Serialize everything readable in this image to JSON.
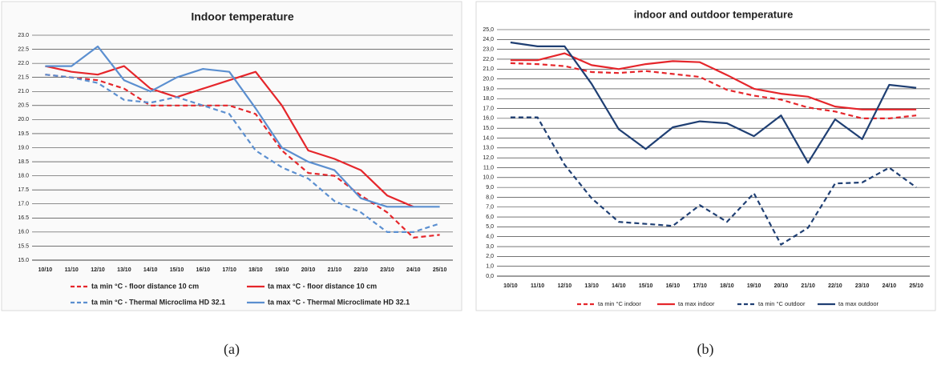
{
  "chart_data": [
    {
      "type": "line",
      "title": "Indoor temperature",
      "caption": "(a)",
      "categories": [
        "10/10",
        "11/10",
        "12/10",
        "13/10",
        "14/10",
        "15/10",
        "16/10",
        "17/10",
        "18/10",
        "19/10",
        "20/10",
        "21/10",
        "22/10",
        "23/10",
        "24/10",
        "25/10"
      ],
      "ylim": [
        15,
        23
      ],
      "yticks": [
        {
          "value": 15,
          "label": "15.0"
        },
        {
          "value": 15.5,
          "label": "15.5"
        },
        {
          "value": 16,
          "label": "16.0"
        },
        {
          "value": 16.5,
          "label": "16.5"
        },
        {
          "value": 17,
          "label": "17.0"
        },
        {
          "value": 17.5,
          "label": "17.5"
        },
        {
          "value": 18,
          "label": "18.0"
        },
        {
          "value": 18.5,
          "label": "18.5"
        },
        {
          "value": 19,
          "label": "19.0"
        },
        {
          "value": 19.5,
          "label": "19.5"
        },
        {
          "value": 20,
          "label": "20.0"
        },
        {
          "value": 20.5,
          "label": "20.5"
        },
        {
          "value": 21,
          "label": "21.0"
        },
        {
          "value": 21.5,
          "label": "21.5"
        },
        {
          "value": 22,
          "label": "22.0"
        },
        {
          "value": 22.5,
          "label": "22.5"
        },
        {
          "value": 23,
          "label": "23.0"
        }
      ],
      "grid": true,
      "legend": "bottom",
      "series": [
        {
          "name": "ta min °C -  floor distance 10 cm",
          "color": "#e5262b",
          "dashed": true,
          "values": [
            21.6,
            21.5,
            21.4,
            21.1,
            20.5,
            20.5,
            20.5,
            20.5,
            20.2,
            18.9,
            18.1,
            18.0,
            17.3,
            16.7,
            15.8,
            15.9
          ]
        },
        {
          "name": "ta max °C - floor distance 10 cm",
          "color": "#e5262b",
          "dashed": false,
          "values": [
            21.9,
            21.7,
            21.6,
            21.9,
            21.1,
            20.8,
            21.1,
            21.4,
            21.7,
            20.5,
            18.9,
            18.6,
            18.2,
            17.3,
            16.9,
            null
          ]
        },
        {
          "name": "ta min °C - Thermal  Microclima HD 32.1",
          "color": "#5b8fd0",
          "dashed": true,
          "values": [
            21.6,
            21.5,
            21.3,
            20.7,
            20.6,
            20.8,
            20.5,
            20.2,
            18.9,
            18.3,
            17.9,
            17.1,
            16.7,
            16.0,
            16.0,
            16.3
          ]
        },
        {
          "name": "ta max °C - Thermal Microclimate  HD 32.1",
          "color": "#5b8fd0",
          "dashed": false,
          "values": [
            21.9,
            21.9,
            22.6,
            21.4,
            21.0,
            21.5,
            21.8,
            21.7,
            20.4,
            19.0,
            18.5,
            18.2,
            17.2,
            16.9,
            16.9,
            16.9
          ]
        }
      ]
    },
    {
      "type": "line",
      "title": "indoor and outdoor temperature",
      "caption": "(b)",
      "categories": [
        "10/10",
        "11/10",
        "12/10",
        "13/10",
        "14/10",
        "15/10",
        "16/10",
        "17/10",
        "18/10",
        "19/10",
        "20/10",
        "21/10",
        "22/10",
        "23/10",
        "24/10",
        "25/10"
      ],
      "ylim": [
        0,
        25
      ],
      "yticks": [
        {
          "value": 0,
          "label": "0,0"
        },
        {
          "value": 1,
          "label": "1,0"
        },
        {
          "value": 2,
          "label": "2,0"
        },
        {
          "value": 3,
          "label": "3,0"
        },
        {
          "value": 4,
          "label": "4,0"
        },
        {
          "value": 5,
          "label": "5,0"
        },
        {
          "value": 6,
          "label": "6,0"
        },
        {
          "value": 7,
          "label": "7,0"
        },
        {
          "value": 8,
          "label": "8,0"
        },
        {
          "value": 9,
          "label": "9,0"
        },
        {
          "value": 10,
          "label": "10,0"
        },
        {
          "value": 11,
          "label": "11,0"
        },
        {
          "value": 12,
          "label": "12,0"
        },
        {
          "value": 13,
          "label": "13,0"
        },
        {
          "value": 14,
          "label": "14,0"
        },
        {
          "value": 15,
          "label": "15,0"
        },
        {
          "value": 16,
          "label": "16,0"
        },
        {
          "value": 17,
          "label": "17,0"
        },
        {
          "value": 18,
          "label": "18,0"
        },
        {
          "value": 19,
          "label": "19,0"
        },
        {
          "value": 20,
          "label": "20,0"
        },
        {
          "value": 21,
          "label": "21,0"
        },
        {
          "value": 22,
          "label": "22,0"
        },
        {
          "value": 23,
          "label": "23,0"
        },
        {
          "value": 24,
          "label": "24,0"
        },
        {
          "value": 25,
          "label": "25,0"
        }
      ],
      "grid": true,
      "legend": "bottom",
      "series": [
        {
          "name": "ta min °C indoor",
          "color": "#e5262b",
          "dashed": true,
          "values": [
            21.6,
            21.5,
            21.3,
            20.7,
            20.6,
            20.8,
            20.5,
            20.2,
            18.9,
            18.3,
            17.9,
            17.1,
            16.7,
            16.0,
            16.0,
            16.3
          ]
        },
        {
          "name": "ta max indoor",
          "color": "#e5262b",
          "dashed": false,
          "values": [
            21.9,
            21.9,
            22.6,
            21.4,
            21.0,
            21.5,
            21.8,
            21.7,
            20.4,
            19.0,
            18.5,
            18.2,
            17.2,
            16.9,
            16.9,
            16.9
          ]
        },
        {
          "name": "ta min °C outdoor",
          "color": "#1f3f73",
          "dashed": true,
          "values": [
            16.1,
            16.1,
            11.3,
            7.9,
            5.5,
            5.3,
            5.1,
            7.2,
            5.5,
            8.4,
            3.2,
            4.9,
            9.4,
            9.5,
            11.0,
            9.0
          ]
        },
        {
          "name": "ta max outdoor",
          "color": "#1f3f73",
          "dashed": false,
          "values": [
            23.7,
            23.3,
            23.3,
            19.5,
            14.9,
            12.9,
            15.1,
            15.7,
            15.5,
            14.2,
            16.3,
            11.5,
            15.9,
            13.9,
            19.4,
            19.1
          ]
        }
      ]
    }
  ]
}
